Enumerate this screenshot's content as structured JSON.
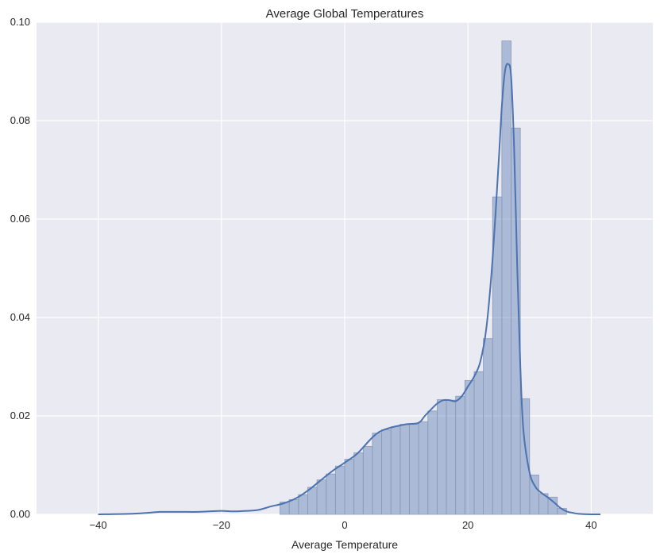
{
  "chart_data": {
    "type": "histogram",
    "title": "Average Global Temperatures",
    "xlabel": "Average Temperature",
    "ylabel": "",
    "xlim": [
      -50,
      50
    ],
    "ylim": [
      0,
      0.1
    ],
    "x_ticks": [
      -40,
      -20,
      0,
      20,
      40
    ],
    "x_tick_labels": [
      "−40",
      "−20",
      "0",
      "20",
      "40"
    ],
    "y_ticks": [
      0.0,
      0.02,
      0.04,
      0.06,
      0.08,
      0.1
    ],
    "y_tick_labels": [
      "0.00",
      "0.02",
      "0.04",
      "0.06",
      "0.08",
      "0.10"
    ],
    "grid": true,
    "colors": {
      "background": "#eaeaf2",
      "grid": "#ffffff",
      "bar_fill": "#4c72b0",
      "bar_fill_opacity": 0.4,
      "bar_edge": "#8c9bb5",
      "kde_line": "#4c72b0"
    },
    "histogram": {
      "bin_width": 1.5,
      "bins": [
        {
          "start": -10.5,
          "value": 0.0025
        },
        {
          "start": -9.0,
          "value": 0.003
        },
        {
          "start": -7.5,
          "value": 0.004
        },
        {
          "start": -6.0,
          "value": 0.0055
        },
        {
          "start": -4.5,
          "value": 0.007
        },
        {
          "start": -3.0,
          "value": 0.0082
        },
        {
          "start": -1.5,
          "value": 0.0098
        },
        {
          "start": 0.0,
          "value": 0.0112
        },
        {
          "start": 1.5,
          "value": 0.0125
        },
        {
          "start": 3.0,
          "value": 0.0138
        },
        {
          "start": 4.5,
          "value": 0.0165
        },
        {
          "start": 6.0,
          "value": 0.0172
        },
        {
          "start": 7.5,
          "value": 0.0178
        },
        {
          "start": 9.0,
          "value": 0.0183
        },
        {
          "start": 10.5,
          "value": 0.0183
        },
        {
          "start": 12.0,
          "value": 0.0188
        },
        {
          "start": 13.5,
          "value": 0.021
        },
        {
          "start": 15.0,
          "value": 0.0233
        },
        {
          "start": 16.5,
          "value": 0.0232
        },
        {
          "start": 18.0,
          "value": 0.024
        },
        {
          "start": 19.5,
          "value": 0.0272
        },
        {
          "start": 21.0,
          "value": 0.029
        },
        {
          "start": 22.5,
          "value": 0.0357
        },
        {
          "start": 24.0,
          "value": 0.0645
        },
        {
          "start": 25.5,
          "value": 0.0962
        },
        {
          "start": 27.0,
          "value": 0.0785
        },
        {
          "start": 28.5,
          "value": 0.0235
        },
        {
          "start": 30.0,
          "value": 0.008
        },
        {
          "start": 31.5,
          "value": 0.0042
        },
        {
          "start": 33.0,
          "value": 0.0035
        },
        {
          "start": 34.5,
          "value": 0.0012
        }
      ]
    },
    "kde": {
      "x": [
        -40,
        -35,
        -32,
        -30,
        -28,
        -26,
        -24,
        -22,
        -20,
        -18,
        -16,
        -14,
        -12,
        -10,
        -8,
        -6,
        -4,
        -2,
        0,
        2,
        4,
        5,
        6,
        8,
        10,
        12,
        13,
        14,
        15,
        16,
        17,
        18,
        19,
        20,
        21,
        22,
        23,
        24,
        25,
        25.5,
        26,
        26.5,
        27,
        27.5,
        28,
        28.5,
        29,
        30,
        31,
        32,
        33,
        34,
        35,
        36,
        37,
        38,
        40,
        41.5
      ],
      "y": [
        0.0,
        0.0001,
        0.0003,
        0.0005,
        0.0005,
        0.0005,
        0.0005,
        0.0006,
        0.0007,
        0.0006,
        0.0007,
        0.0009,
        0.0016,
        0.0022,
        0.0032,
        0.0048,
        0.0068,
        0.0088,
        0.0105,
        0.0123,
        0.015,
        0.0162,
        0.017,
        0.0178,
        0.0183,
        0.0186,
        0.02,
        0.0213,
        0.0225,
        0.0232,
        0.0232,
        0.023,
        0.024,
        0.026,
        0.028,
        0.031,
        0.038,
        0.052,
        0.072,
        0.083,
        0.09,
        0.0915,
        0.089,
        0.074,
        0.05,
        0.03,
        0.017,
        0.0085,
        0.0055,
        0.0043,
        0.0034,
        0.0024,
        0.0013,
        0.0006,
        0.0003,
        0.0001,
        0.0,
        0.0
      ]
    }
  }
}
